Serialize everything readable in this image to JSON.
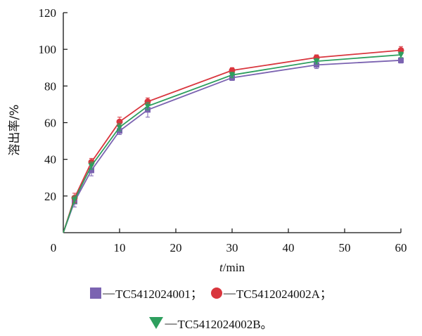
{
  "chart_data": {
    "type": "line",
    "ylabel": "溶出率/%",
    "xlabel_italic": "t",
    "xlabel_rest": "/min",
    "xlim": [
      0,
      60
    ],
    "ylim": [
      0,
      120
    ],
    "xticks": [
      0,
      10,
      20,
      30,
      40,
      50,
      60
    ],
    "yticks": [
      20,
      40,
      60,
      80,
      100,
      120
    ],
    "x": [
      0,
      2,
      5,
      10,
      15,
      30,
      45,
      60
    ],
    "series": [
      {
        "name": "TC5412024001",
        "marker": "square",
        "color": "#7b63b1",
        "values": [
          0,
          17,
          34,
          55.5,
          67,
          84.5,
          91.5,
          94
        ],
        "error": [
          0,
          3,
          3,
          2,
          4,
          1.5,
          2,
          1.5
        ]
      },
      {
        "name": "TC5412024002A",
        "marker": "circle",
        "color": "#d9363e",
        "values": [
          0,
          19,
          38.5,
          60.5,
          71.5,
          88.5,
          95.5,
          99.5
        ],
        "error": [
          0,
          2.5,
          2,
          2.5,
          2,
          1.5,
          1.5,
          2
        ]
      },
      {
        "name": "TC5412024002B",
        "marker": "triangle",
        "color": "#2e9f5e",
        "values": [
          0,
          18,
          36.5,
          57.5,
          69,
          86,
          93.5,
          97
        ],
        "error": [
          0,
          2,
          2,
          2,
          2,
          1.5,
          1.5,
          1.5
        ]
      }
    ],
    "legend": {
      "row1": [
        {
          "dash": "—",
          "label": "TC5412024001；",
          "series": 0
        },
        {
          "dash": "—",
          "label": "TC5412024002A；",
          "series": 1
        }
      ],
      "row2": [
        {
          "dash": "—",
          "label": "TC5412024002B。",
          "series": 2
        }
      ]
    }
  }
}
